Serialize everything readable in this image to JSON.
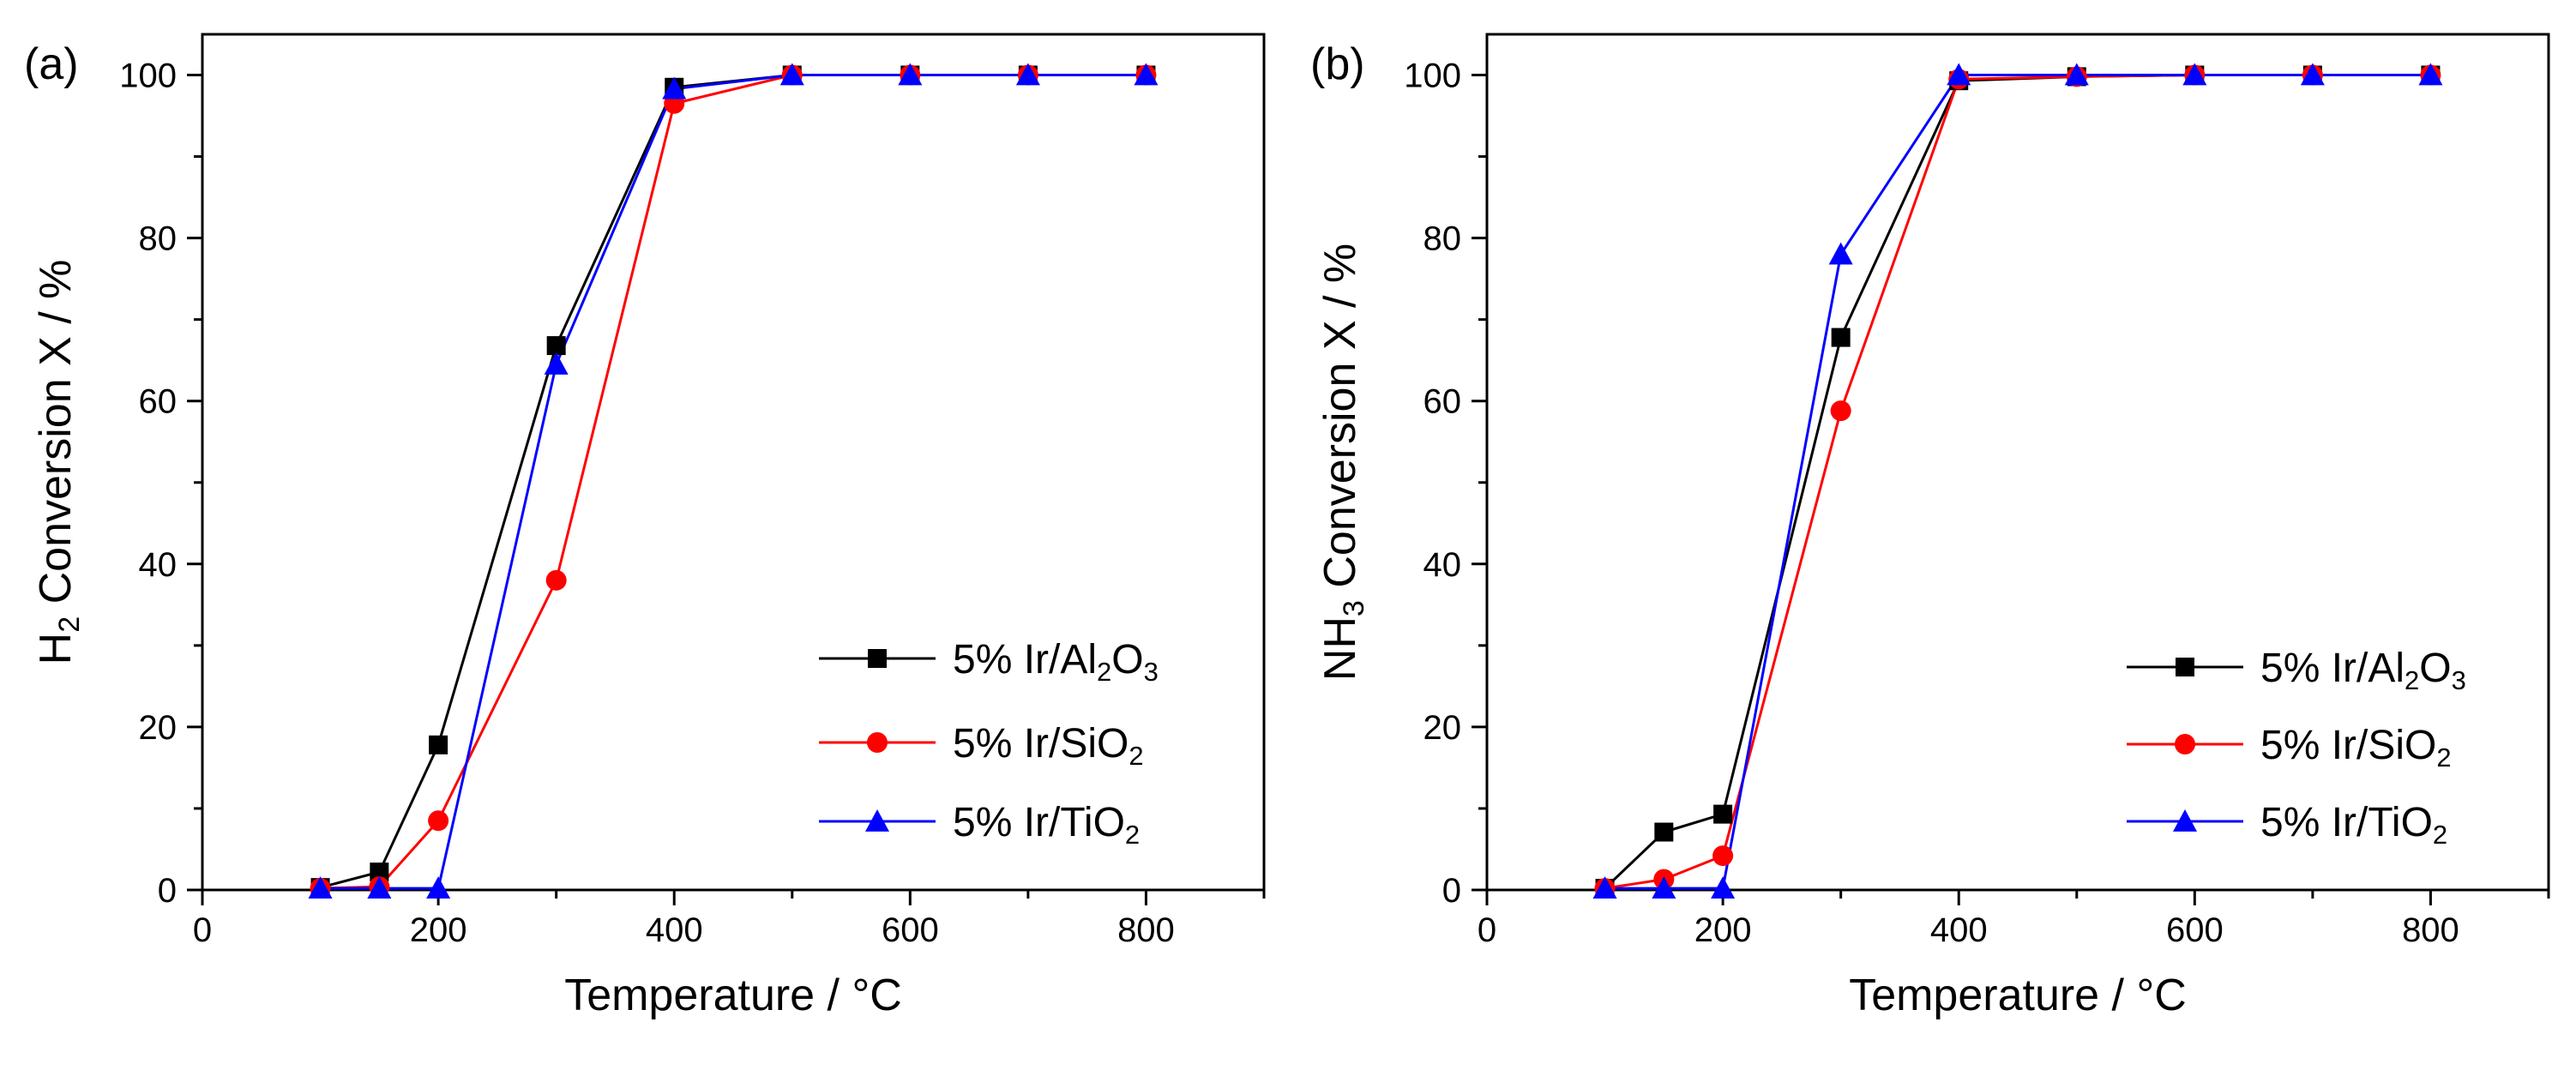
{
  "chart_data": [
    {
      "type": "line",
      "panel_label": "(a)",
      "xlabel": "Temperature / °C",
      "ylabel_parts": [
        {
          "text": "H",
          "sub": false
        },
        {
          "text": "2",
          "sub": true
        },
        {
          "text": " Conversion X / %",
          "sub": false
        }
      ],
      "xlim": [
        0,
        900
      ],
      "ylim": [
        0,
        105
      ],
      "xticks": [
        0,
        200,
        400,
        600,
        800
      ],
      "yticks": [
        0,
        20,
        40,
        60,
        80,
        100
      ],
      "legend_position": "lower-right",
      "series": [
        {
          "name_parts": [
            {
              "text": "5% Ir/Al",
              "sub": false
            },
            {
              "text": "2",
              "sub": true
            },
            {
              "text": "O",
              "sub": false
            },
            {
              "text": "3",
              "sub": true
            }
          ],
          "color": "#000000",
          "marker": "square",
          "x": [
            100,
            150,
            200,
            300,
            400,
            500,
            600,
            700,
            800
          ],
          "y": [
            0.3,
            2.2,
            17.8,
            66.8,
            98.5,
            100,
            100,
            100,
            100
          ]
        },
        {
          "name_parts": [
            {
              "text": "5% Ir/SiO",
              "sub": false
            },
            {
              "text": "2",
              "sub": true
            }
          ],
          "color": "#ff0000",
          "marker": "circle",
          "x": [
            100,
            150,
            200,
            300,
            400,
            500,
            600,
            700,
            800
          ],
          "y": [
            0.2,
            0.4,
            8.5,
            38.0,
            96.5,
            100,
            100,
            100,
            100
          ]
        },
        {
          "name_parts": [
            {
              "text": "5% Ir/TiO",
              "sub": false
            },
            {
              "text": "2",
              "sub": true
            }
          ],
          "color": "#0000ff",
          "marker": "triangle",
          "x": [
            100,
            150,
            200,
            300,
            400,
            500,
            600,
            700,
            800
          ],
          "y": [
            0.2,
            0.2,
            0.2,
            64.5,
            98.3,
            100,
            100,
            100,
            100
          ]
        }
      ]
    },
    {
      "type": "line",
      "panel_label": "(b)",
      "xlabel": "Temperature / °C",
      "ylabel_parts": [
        {
          "text": "NH",
          "sub": false
        },
        {
          "text": "3",
          "sub": true
        },
        {
          "text": " Conversion X / %",
          "sub": false
        }
      ],
      "xlim": [
        0,
        900
      ],
      "ylim": [
        0,
        105
      ],
      "xticks": [
        0,
        200,
        400,
        600,
        800
      ],
      "yticks": [
        0,
        20,
        40,
        60,
        80,
        100
      ],
      "legend_position": "lower-right",
      "series": [
        {
          "name_parts": [
            {
              "text": "5% Ir/Al",
              "sub": false
            },
            {
              "text": "2",
              "sub": true
            },
            {
              "text": "O",
              "sub": false
            },
            {
              "text": "3",
              "sub": true
            }
          ],
          "color": "#000000",
          "marker": "square",
          "x": [
            100,
            150,
            200,
            300,
            400,
            500,
            600,
            700,
            800
          ],
          "y": [
            0.2,
            7.1,
            9.3,
            67.8,
            99.3,
            99.8,
            100,
            100,
            100
          ]
        },
        {
          "name_parts": [
            {
              "text": "5% Ir/SiO",
              "sub": false
            },
            {
              "text": "2",
              "sub": true
            }
          ],
          "color": "#ff0000",
          "marker": "circle",
          "x": [
            100,
            150,
            200,
            300,
            400,
            500,
            600,
            700,
            800
          ],
          "y": [
            0.2,
            1.3,
            4.2,
            58.8,
            99.5,
            99.8,
            100,
            100,
            100
          ]
        },
        {
          "name_parts": [
            {
              "text": "5% Ir/TiO",
              "sub": false
            },
            {
              "text": "2",
              "sub": true
            }
          ],
          "color": "#0000ff",
          "marker": "triangle",
          "x": [
            100,
            150,
            200,
            300,
            400,
            500,
            600,
            700,
            800
          ],
          "y": [
            0.2,
            0.2,
            0.2,
            78.0,
            100,
            100,
            100,
            100,
            100
          ]
        }
      ]
    }
  ]
}
